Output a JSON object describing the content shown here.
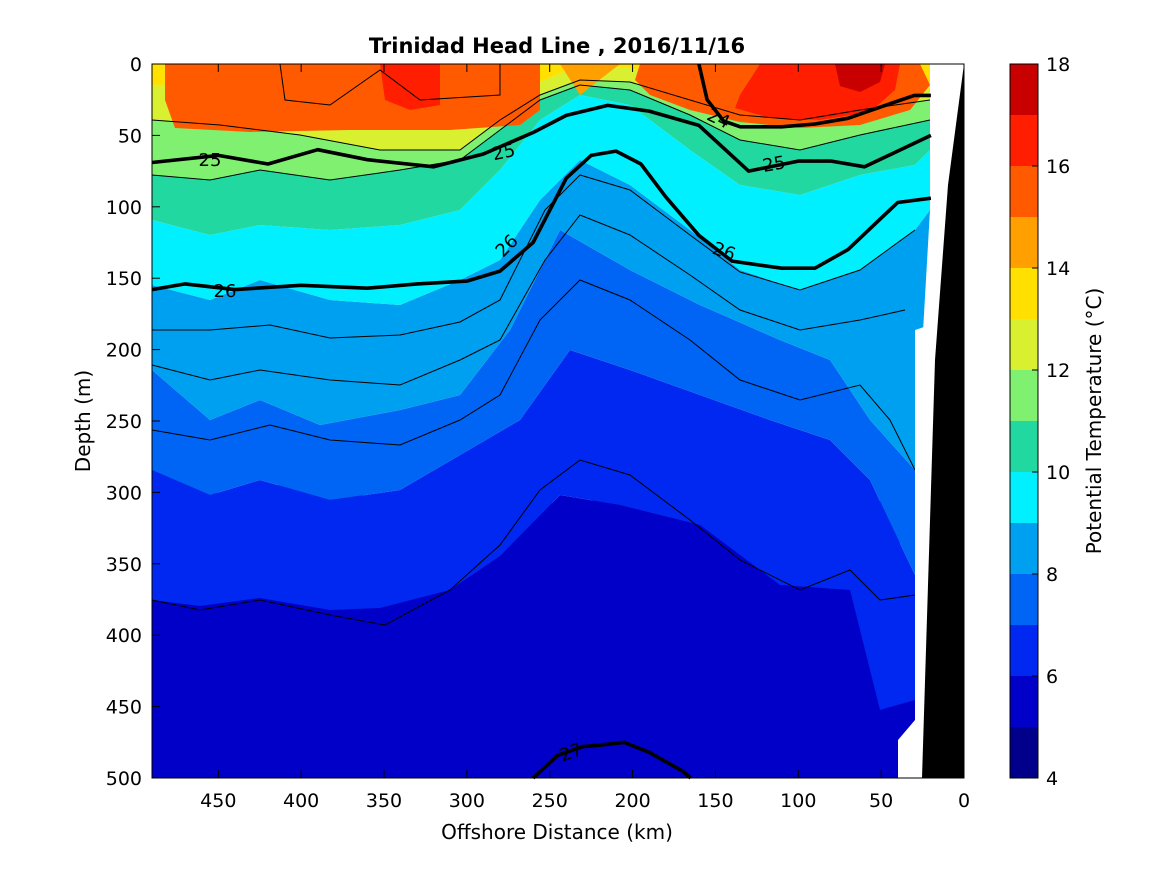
{
  "chart_data": {
    "type": "contour",
    "title": "Trinidad Head Line , 2016/11/16",
    "xlabel": "Offshore Distance (km)",
    "ylabel": "Depth (m)",
    "colorbar_label": "Potential Temperature (°C)",
    "x_axis": {
      "reversed": true,
      "ticks": [
        450,
        400,
        350,
        300,
        250,
        200,
        150,
        100,
        50,
        0
      ],
      "lim": [
        0,
        490
      ]
    },
    "y_axis": {
      "reversed": true,
      "ticks": [
        0,
        50,
        100,
        150,
        200,
        250,
        300,
        350,
        400,
        450,
        500
      ],
      "lim": [
        0,
        500
      ]
    },
    "colorbar": {
      "ticks": [
        4,
        6,
        8,
        10,
        12,
        14,
        16,
        18
      ],
      "levels": [
        4,
        5,
        6,
        7,
        8,
        9,
        10,
        11,
        12,
        13,
        14,
        15,
        16,
        17,
        18
      ],
      "colors": [
        "#00008b",
        "#0000c8",
        "#0028f0",
        "#0064f5",
        "#00a0f0",
        "#00f0ff",
        "#20d8a0",
        "#80f070",
        "#d8f030",
        "#ffe000",
        "#ffa000",
        "#ff5a00",
        "#ff1e00",
        "#c80000"
      ]
    },
    "temperature_bands": [
      {
        "name": "4-5",
        "color": "#00008b"
      },
      {
        "name": "5-6",
        "color": "#0000c8"
      },
      {
        "name": "6-7",
        "color": "#0028f0"
      },
      {
        "name": "7-8",
        "color": "#0064f5"
      },
      {
        "name": "8-9",
        "color": "#00a0f0"
      },
      {
        "name": "9-10",
        "color": "#00f0ff"
      },
      {
        "name": "10-11",
        "color": "#20d8a0"
      },
      {
        "name": "11-12",
        "color": "#80f070"
      },
      {
        "name": "12-13",
        "color": "#d8f030"
      },
      {
        "name": "13-14",
        "color": "#ffe000"
      },
      {
        "name": "14-15",
        "color": "#ffa000"
      },
      {
        "name": "15-16",
        "color": "#ff5a00"
      },
      {
        "name": "16-17",
        "color": "#ff1e00"
      },
      {
        "name": "17-18",
        "color": "#c80000"
      }
    ],
    "sigma_contours": [
      {
        "label": "24",
        "x": [
          160,
          155,
          145,
          135,
          110,
          90,
          70,
          50,
          30,
          20
        ],
        "y": [
          0,
          25,
          40,
          44,
          44,
          42,
          38,
          30,
          22,
          22
        ]
      },
      {
        "label": "25",
        "x": [
          490,
          450,
          420,
          390,
          360,
          320,
          290,
          260,
          240,
          215,
          190,
          160,
          130,
          100,
          80,
          60,
          40,
          20
        ],
        "y": [
          69,
          64,
          70,
          60,
          67,
          72,
          63,
          48,
          36,
          29,
          33,
          43,
          75,
          68,
          68,
          72,
          61,
          50
        ]
      },
      {
        "label": "26",
        "x": [
          490,
          470,
          440,
          400,
          360,
          330,
          300,
          280,
          260,
          240,
          225,
          210,
          195,
          180,
          160,
          140,
          110,
          90,
          70,
          50,
          40,
          20
        ],
        "y": [
          158,
          154,
          158,
          155,
          157,
          154,
          152,
          145,
          125,
          80,
          64,
          61,
          70,
          93,
          120,
          138,
          143,
          143,
          130,
          108,
          97,
          94
        ]
      },
      {
        "label": "27",
        "x": [
          260,
          245,
          230,
          220,
          205,
          190,
          170,
          165
        ],
        "y": [
          500,
          484,
          478,
          477,
          475,
          482,
          495,
          500
        ]
      }
    ],
    "annotations": [
      "25",
      "25",
      "25",
      "24",
      "26",
      "26",
      "26",
      "27"
    ],
    "grid": false,
    "legend": "colorbar-right"
  }
}
